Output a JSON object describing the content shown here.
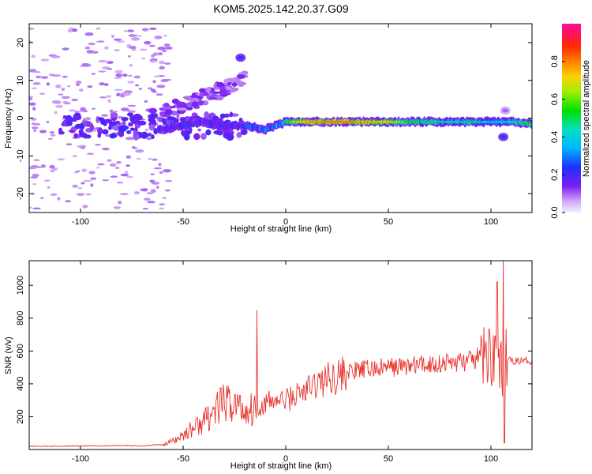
{
  "title": "KOM5.2025.142.20.37.G09",
  "chart_data": [
    {
      "type": "heatmap",
      "title": "KOM5.2025.142.20.37.G09",
      "xlabel": "Height of straight line (km)",
      "ylabel": "Frequency (Hz)",
      "xlim": [
        -125,
        120
      ],
      "ylim": [
        -25,
        25
      ],
      "x_ticks": [
        "-100",
        "-50",
        "0",
        "50",
        "100"
      ],
      "x_tick_values": [
        -100,
        -50,
        0,
        50,
        100
      ],
      "y_ticks": [
        "-20",
        "-10",
        "0",
        "10",
        "20"
      ],
      "y_tick_values": [
        -20,
        -10,
        0,
        10,
        20
      ],
      "colorbar": {
        "label": "Normalized spectral amplitude",
        "range": [
          0,
          1
        ],
        "ticks": [
          "0.0",
          "0.2",
          "0.4",
          "0.6",
          "0.8"
        ],
        "tick_values": [
          0.0,
          0.2,
          0.4,
          0.6,
          0.8
        ],
        "colormap": "rainbow (light purple → magenta)"
      },
      "main_trace": {
        "x": [
          -60,
          -50,
          -40,
          -30,
          -20,
          -10,
          0,
          10,
          20,
          30,
          40,
          50,
          60,
          70,
          80,
          90,
          100,
          110,
          120
        ],
        "frequency": [
          -3,
          -2,
          -1,
          -2,
          -2,
          -3,
          -1,
          -1,
          -1,
          -1,
          -1,
          -1,
          -1,
          -1,
          -1,
          -1,
          -1,
          -1,
          -1.5
        ],
        "amplitude": [
          0.3,
          0.35,
          0.3,
          0.3,
          0.35,
          0.4,
          0.55,
          0.75,
          0.8,
          0.8,
          0.75,
          0.7,
          0.55,
          0.5,
          0.45,
          0.5,
          0.4,
          0.45,
          0.55
        ]
      },
      "features": [
        {
          "x": -22,
          "frequency": 16,
          "amplitude": 0.25
        },
        {
          "x": 107,
          "frequency": 2,
          "amplitude": 0.1
        },
        {
          "x": 106,
          "frequency": -5,
          "amplitude": 0.25
        }
      ]
    },
    {
      "type": "line",
      "xlabel": "Height of straight line (km)",
      "ylabel": "SNR (v/v)",
      "xlim": [
        -125,
        120
      ],
      "ylim": [
        0,
        1150
      ],
      "x_ticks": [
        "-100",
        "-50",
        "0",
        "50",
        "100"
      ],
      "x_tick_values": [
        -100,
        -50,
        0,
        50,
        100
      ],
      "y_ticks": [
        "200",
        "400",
        "600",
        "800",
        "1000"
      ],
      "y_tick_values": [
        200,
        400,
        600,
        800,
        1000
      ],
      "series": [
        {
          "color": "#e8342e",
          "x": [
            -125,
            -110,
            -100,
            -90,
            -80,
            -70,
            -60,
            -55,
            -50,
            -45,
            -40,
            -35,
            -30,
            -25,
            -20,
            -15,
            -10,
            -5,
            0,
            5,
            10,
            15,
            20,
            25,
            30,
            35,
            40,
            50,
            60,
            70,
            80,
            90,
            95,
            100,
            103,
            105,
            106,
            107,
            110,
            115,
            120
          ],
          "y": [
            20,
            20,
            22,
            22,
            25,
            22,
            30,
            50,
            90,
            130,
            170,
            230,
            280,
            280,
            240,
            250,
            280,
            300,
            300,
            330,
            360,
            400,
            430,
            450,
            470,
            480,
            490,
            500,
            510,
            520,
            530,
            540,
            560,
            580,
            620,
            500,
            100,
            560,
            540,
            540,
            540
          ]
        }
      ],
      "spikes": [
        {
          "x": -14,
          "y": 850
        },
        {
          "x": 103,
          "y": 1020
        },
        {
          "x": 106,
          "y": 1150
        },
        {
          "x": 106.5,
          "y": 40
        }
      ]
    }
  ]
}
